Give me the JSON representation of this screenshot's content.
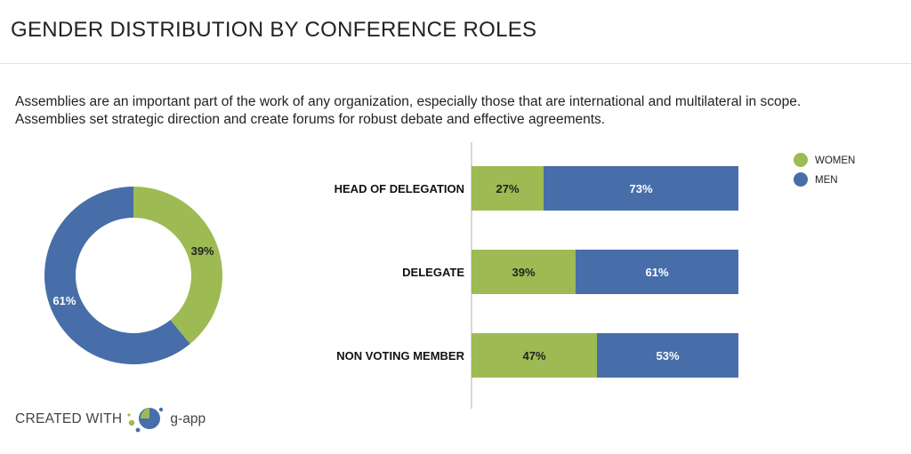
{
  "header": {
    "title": "GENDER DISTRIBUTION BY CONFERENCE ROLES"
  },
  "description": {
    "line1": "Assemblies are an important part of the work of any organization, especially those that are international and multilateral in scope.",
    "line2": "Assemblies set strategic direction and create forums for robust debate and effective agreements."
  },
  "colors": {
    "women": "#9dbb52",
    "men": "#476ea8",
    "axis": "#cccccc"
  },
  "chart_data": [
    {
      "type": "pie",
      "variant": "donut",
      "labels": [
        "WOMEN",
        "MEN"
      ],
      "values": [
        39,
        61
      ],
      "value_labels": [
        "39%",
        "61%"
      ]
    },
    {
      "type": "bar",
      "orientation": "horizontal",
      "stacked": true,
      "categories": [
        "HEAD OF DELEGATION",
        "DELEGATE",
        "NON VOTING MEMBER"
      ],
      "series": [
        {
          "name": "WOMEN",
          "values": [
            27,
            39,
            47
          ],
          "labels": [
            "27%",
            "39%",
            "47%"
          ]
        },
        {
          "name": "MEN",
          "values": [
            73,
            61,
            53
          ],
          "labels": [
            "73%",
            "61%",
            "53%"
          ]
        }
      ],
      "xlim": [
        0,
        100
      ],
      "legend_position": "top-right"
    }
  ],
  "footer": {
    "created_with": "CREATED WITH",
    "brand": "g-app"
  }
}
